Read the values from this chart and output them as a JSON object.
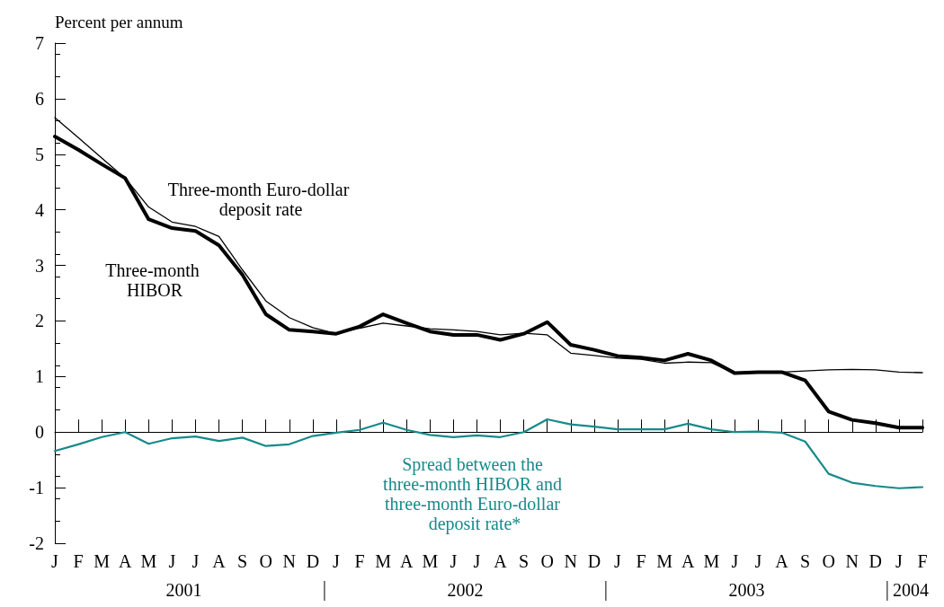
{
  "chart_data": {
    "type": "line",
    "ylabel": "Percent per annum",
    "categories": [
      "J",
      "F",
      "M",
      "A",
      "M",
      "J",
      "J",
      "A",
      "S",
      "O",
      "N",
      "D",
      "J",
      "F",
      "M",
      "A",
      "M",
      "J",
      "J",
      "A",
      "S",
      "O",
      "N",
      "D",
      "J",
      "F",
      "M",
      "A",
      "M",
      "J",
      "J",
      "A",
      "S",
      "O",
      "N",
      "D",
      "J",
      "F"
    ],
    "series": [
      {
        "name": "Three-month Euro-dollar deposit rate",
        "color": "#000000",
        "values": [
          5.66,
          5.3,
          4.93,
          4.57,
          4.05,
          3.78,
          3.7,
          3.52,
          2.92,
          2.36,
          2.06,
          1.88,
          1.77,
          1.87,
          1.96,
          1.91,
          1.86,
          1.84,
          1.81,
          1.75,
          1.78,
          1.75,
          1.42,
          1.38,
          1.33,
          1.31,
          1.24,
          1.26,
          1.25,
          1.06,
          1.07,
          1.08,
          1.1,
          1.12,
          1.13,
          1.12,
          1.08,
          1.07
        ]
      },
      {
        "name": "Three-month HIBOR",
        "color": "#000000",
        "values": [
          5.32,
          5.08,
          4.82,
          4.57,
          3.83,
          3.67,
          3.62,
          3.36,
          2.83,
          2.12,
          1.84,
          1.81,
          1.77,
          1.9,
          2.12,
          1.96,
          1.81,
          1.75,
          1.75,
          1.66,
          1.77,
          1.98,
          1.57,
          1.48,
          1.37,
          1.34,
          1.29,
          1.41,
          1.29,
          1.06,
          1.08,
          1.08,
          0.93,
          0.37,
          0.22,
          0.16,
          0.08,
          0.08
        ]
      },
      {
        "name": "Spread between the three-month HIBOR and three-month Euro-dollar deposit rate*",
        "color": "#178a8a",
        "values": [
          -0.34,
          -0.22,
          -0.09,
          0.0,
          -0.21,
          -0.11,
          -0.08,
          -0.16,
          -0.1,
          -0.25,
          -0.22,
          -0.07,
          -0.01,
          0.04,
          0.17,
          0.04,
          -0.05,
          -0.09,
          -0.06,
          -0.09,
          0.0,
          0.23,
          0.14,
          0.1,
          0.05,
          0.05,
          0.05,
          0.15,
          0.05,
          0.0,
          0.01,
          -0.01,
          -0.17,
          -0.75,
          -0.91,
          -0.97,
          -1.01,
          -0.99
        ]
      }
    ],
    "ylim": [
      -2,
      7
    ],
    "yticks": [
      -2,
      -1,
      0,
      1,
      2,
      3,
      4,
      5,
      6,
      7
    ],
    "ref_lines": [
      {
        "axis": "y",
        "value": 0,
        "color": "#000000"
      }
    ],
    "annotations": [
      "2001",
      "2002",
      "2003",
      "2004"
    ],
    "grid": false,
    "legend": false,
    "marker": "none",
    "line_style": "solid"
  }
}
